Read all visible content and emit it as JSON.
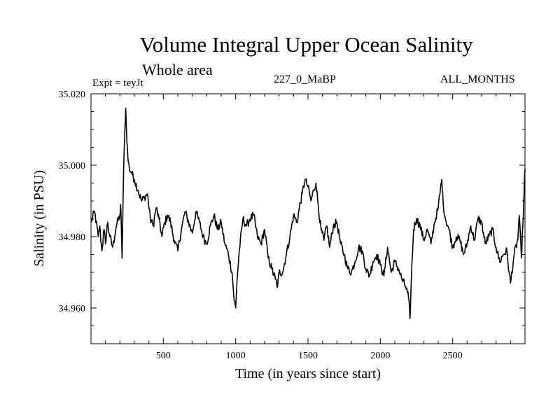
{
  "header": {
    "title": "Volume Integral Upper Ocean Salinity",
    "subtitle": "Whole area",
    "experiment": "Expt = teyJt",
    "run_id": "227_0_MaBP",
    "period": "ALL_MONTHS"
  },
  "chart_data": {
    "type": "line",
    "title": "Volume Integral Upper Ocean Salinity",
    "xlabel": "Time (in years since start)",
    "ylabel": "Salinity (in PSU)",
    "xlim": [
      0,
      3000
    ],
    "ylim": [
      34.95,
      35.02
    ],
    "xticks": [
      500,
      1000,
      1500,
      2000,
      2500
    ],
    "xtick_labels": [
      "500",
      "1000",
      "1500",
      "2000",
      "2500"
    ],
    "yticks": [
      34.96,
      34.98,
      35.0,
      35.02
    ],
    "ytick_labels": [
      "34.960",
      "34.980",
      "35.000",
      "35.020"
    ],
    "grid": false,
    "series": [
      {
        "name": "Salinity",
        "x": [
          0,
          25,
          50,
          60,
          75,
          90,
          100,
          115,
          130,
          150,
          175,
          200,
          205,
          215,
          225,
          235,
          240,
          245,
          255,
          265,
          280,
          300,
          325,
          350,
          370,
          390,
          410,
          430,
          450,
          470,
          490,
          510,
          530,
          550,
          575,
          600,
          625,
          650,
          675,
          700,
          725,
          750,
          775,
          800,
          825,
          850,
          875,
          900,
          925,
          950,
          975,
          990,
          1000,
          1010,
          1025,
          1050,
          1075,
          1100,
          1125,
          1150,
          1175,
          1200,
          1225,
          1250,
          1275,
          1290,
          1300,
          1325,
          1350,
          1375,
          1400,
          1425,
          1440,
          1460,
          1480,
          1500,
          1520,
          1540,
          1555,
          1570,
          1590,
          1610,
          1630,
          1650,
          1675,
          1700,
          1725,
          1750,
          1775,
          1800,
          1825,
          1850,
          1875,
          1900,
          1925,
          1950,
          1975,
          2000,
          2025,
          2050,
          2075,
          2100,
          2125,
          2150,
          2175,
          2195,
          2205,
          2215,
          2230,
          2250,
          2275,
          2300,
          2325,
          2350,
          2375,
          2400,
          2415,
          2425,
          2435,
          2450,
          2475,
          2500,
          2525,
          2550,
          2575,
          2600,
          2625,
          2650,
          2675,
          2700,
          2725,
          2750,
          2775,
          2800,
          2825,
          2850,
          2875,
          2890,
          2900,
          2925,
          2950,
          2960,
          2975,
          2985,
          3000
        ],
        "values": [
          34.984,
          34.987,
          34.98,
          34.983,
          34.976,
          34.982,
          34.978,
          34.984,
          34.98,
          34.977,
          34.983,
          34.986,
          34.989,
          34.974,
          34.998,
          35.011,
          35.016,
          35.01,
          35.002,
          34.999,
          34.998,
          34.996,
          34.993,
          34.99,
          34.991,
          34.992,
          34.985,
          34.983,
          34.988,
          34.985,
          34.98,
          34.984,
          34.986,
          34.984,
          34.979,
          34.976,
          34.982,
          34.987,
          34.984,
          34.981,
          34.987,
          34.984,
          34.98,
          34.978,
          34.983,
          34.986,
          34.982,
          34.984,
          34.978,
          34.975,
          34.97,
          34.962,
          34.96,
          34.968,
          34.976,
          34.985,
          34.983,
          34.985,
          34.986,
          34.98,
          34.978,
          34.982,
          34.974,
          34.971,
          34.968,
          34.966,
          34.97,
          34.97,
          34.975,
          34.98,
          34.986,
          34.984,
          34.988,
          34.992,
          34.996,
          34.994,
          34.99,
          34.993,
          34.995,
          34.989,
          34.982,
          34.979,
          34.983,
          34.977,
          34.983,
          34.984,
          34.978,
          34.975,
          34.971,
          34.97,
          34.973,
          34.977,
          34.976,
          34.971,
          34.969,
          34.973,
          34.975,
          34.972,
          34.969,
          34.977,
          34.97,
          34.973,
          34.971,
          34.968,
          34.966,
          34.963,
          34.957,
          34.969,
          34.982,
          34.985,
          34.983,
          34.979,
          34.982,
          34.978,
          34.984,
          34.988,
          34.993,
          34.996,
          34.989,
          34.985,
          34.982,
          34.977,
          34.98,
          34.979,
          34.975,
          34.978,
          34.983,
          34.979,
          34.985,
          34.984,
          34.978,
          34.98,
          34.982,
          34.977,
          34.973,
          34.975,
          34.976,
          34.97,
          34.967,
          34.975,
          34.979,
          34.986,
          34.974,
          34.983,
          34.999
        ]
      }
    ]
  }
}
